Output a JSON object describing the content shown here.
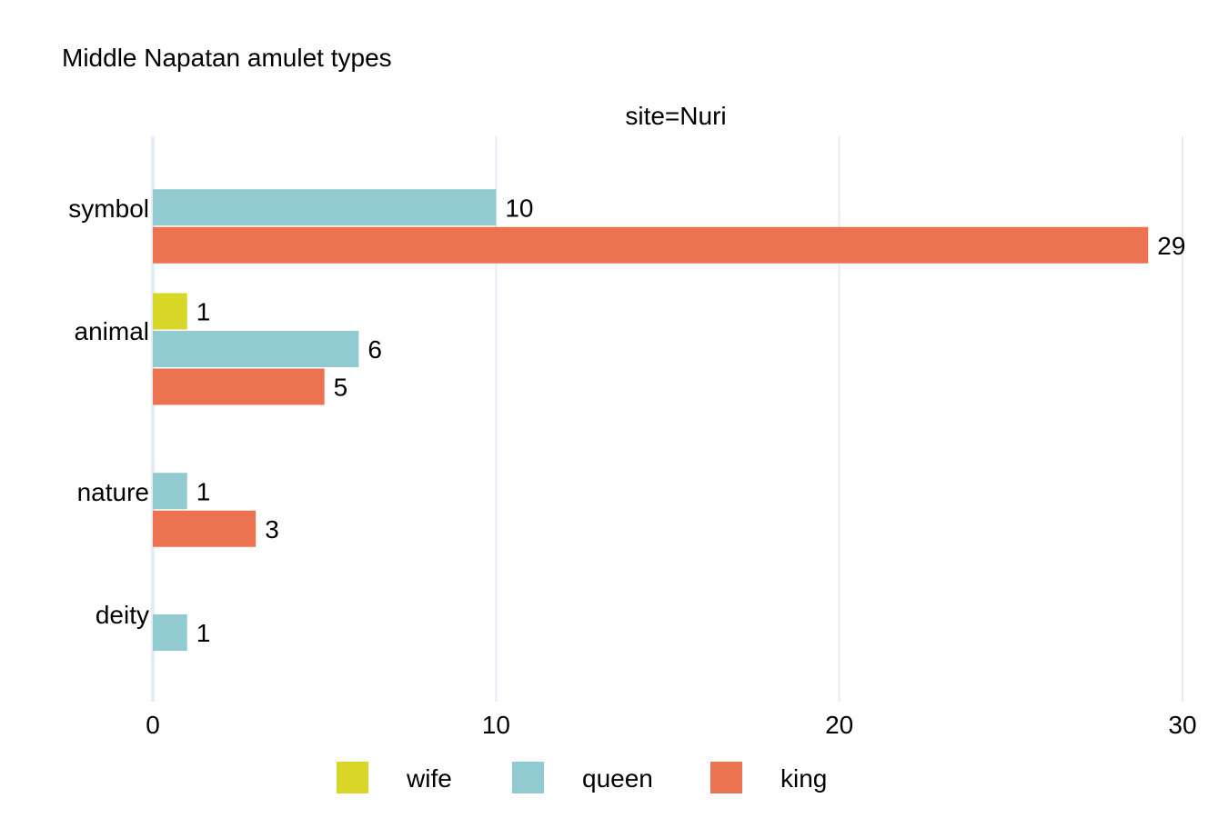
{
  "chart_data": {
    "type": "bar",
    "orientation": "horizontal",
    "title": "Middle Napatan amulet types",
    "facet_label": "site=Nuri",
    "categories": [
      "symbol",
      "animal",
      "nature",
      "deity"
    ],
    "series": [
      {
        "name": "wife",
        "color": "#d8d727",
        "values": [
          null,
          1,
          null,
          null
        ]
      },
      {
        "name": "queen",
        "color": "#92cad1",
        "values": [
          10,
          6,
          1,
          1
        ]
      },
      {
        "name": "king",
        "color": "#eb7350",
        "values": [
          29,
          5,
          3,
          null
        ]
      }
    ],
    "xlim": [
      0,
      30
    ],
    "xticks": [
      0,
      10,
      20,
      30
    ],
    "grid": true,
    "legend_position": "bottom",
    "gridline_color": "#e5ecf6"
  }
}
